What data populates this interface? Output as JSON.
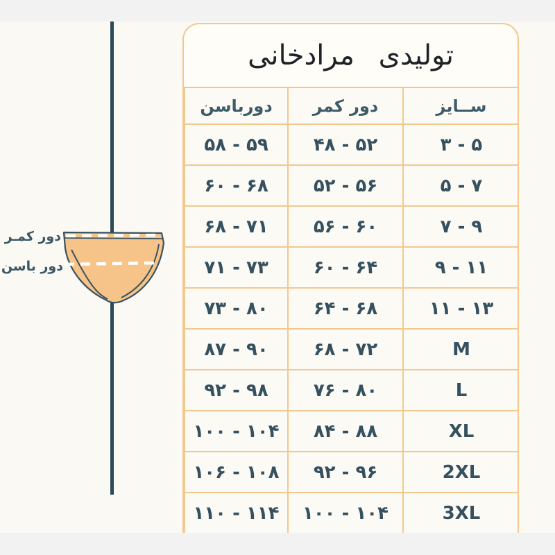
{
  "page": {
    "title": "تولیدی مرادخانی"
  },
  "diagram": {
    "waist_label": "دور کمـر",
    "hip_label": "دور باسن"
  },
  "colors": {
    "table_border": "#f3c88e",
    "cell_text": "#35505e",
    "header_text": "#3e5b68",
    "title_text": "#1f2327",
    "axis_line": "#2d4a57",
    "brief_fill": "#f6c389",
    "brief_outline": "#3a5260",
    "letterbox_band": "#f1f2f1",
    "page_background": "#faf9f4"
  },
  "chart_data": {
    "type": "table",
    "title": "تولیدی مرادخانی",
    "columns": [
      "سایز",
      "دور کمر",
      "دورباسن"
    ],
    "column_keys": [
      "size",
      "waist",
      "hip"
    ],
    "headers": {
      "size": "ســایز",
      "waist": "دور کمر",
      "hip": "دورباسن"
    },
    "rows_display": [
      {
        "size": "۳ - ۵",
        "waist": "۴۸ - ۵۲",
        "hip": "۵۸ - ۵۹"
      },
      {
        "size": "۵ - ۷",
        "waist": "۵۲ - ۵۶",
        "hip": "۶۰ - ۶۸"
      },
      {
        "size": "۷ - ۹",
        "waist": "۵۶ - ۶۰",
        "hip": "۶۸ - ۷۱"
      },
      {
        "size": "۹ - ۱۱",
        "waist": "۶۰ - ۶۴",
        "hip": "۷۱ - ۷۳"
      },
      {
        "size": "۱۱ - ۱۳",
        "waist": "۶۴ - ۶۸",
        "hip": "۷۳ - ۸۰"
      },
      {
        "size": "M",
        "waist": "۶۸ - ۷۲",
        "hip": "۸۷ - ۹۰"
      },
      {
        "size": "L",
        "waist": "۷۶ - ۸۰",
        "hip": "۹۲ - ۹۸"
      },
      {
        "size": "XL",
        "waist": "۸۴ - ۸۸",
        "hip": "۱۰۰ - ۱۰۴"
      },
      {
        "size": "2XL",
        "waist": "۹۲ - ۹۶",
        "hip": "۱۰۶ - ۱۰۸"
      },
      {
        "size": "3XL",
        "waist": "۱۰۰ - ۱۰۴",
        "hip": "۱۱۰ - ۱۱۴"
      }
    ],
    "rows_numeric": [
      {
        "size": "3-5",
        "waist": [
          48,
          52
        ],
        "hip": [
          58,
          59
        ]
      },
      {
        "size": "5-7",
        "waist": [
          52,
          56
        ],
        "hip": [
          60,
          68
        ]
      },
      {
        "size": "7-9",
        "waist": [
          56,
          60
        ],
        "hip": [
          68,
          71
        ]
      },
      {
        "size": "9-11",
        "waist": [
          60,
          64
        ],
        "hip": [
          71,
          73
        ]
      },
      {
        "size": "11-13",
        "waist": [
          64,
          68
        ],
        "hip": [
          73,
          80
        ]
      },
      {
        "size": "M",
        "waist": [
          68,
          72
        ],
        "hip": [
          87,
          90
        ]
      },
      {
        "size": "L",
        "waist": [
          76,
          80
        ],
        "hip": [
          92,
          98
        ]
      },
      {
        "size": "XL",
        "waist": [
          84,
          88
        ],
        "hip": [
          100,
          104
        ]
      },
      {
        "size": "2XL",
        "waist": [
          92,
          96
        ],
        "hip": [
          106,
          108
        ]
      },
      {
        "size": "3XL",
        "waist": [
          100,
          104
        ],
        "hip": [
          110,
          114
        ]
      }
    ]
  }
}
